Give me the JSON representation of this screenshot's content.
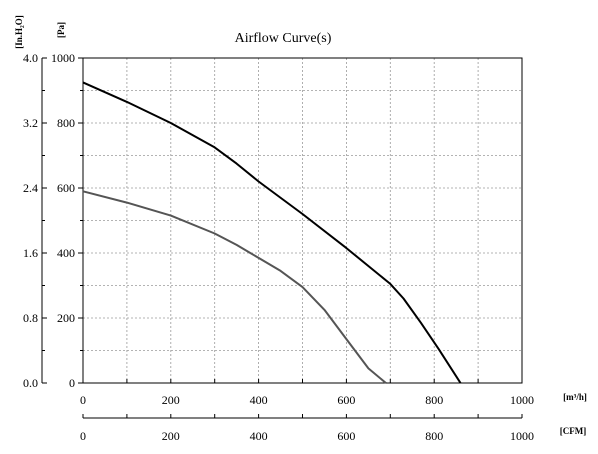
{
  "chart_data": {
    "type": "line",
    "title": "Airflow Curve(s)",
    "grid": true,
    "left_axis_outer": {
      "unit": "[In.H₂O]",
      "range": [
        0,
        4.0
      ],
      "ticks": [
        "0.0",
        "0.8",
        "1.6",
        "2.4",
        "3.2",
        "4.0"
      ]
    },
    "left_axis_inner": {
      "unit": "[Pa]",
      "range": [
        0,
        1000
      ],
      "ticks": [
        "0",
        "200",
        "400",
        "600",
        "800",
        "1000"
      ]
    },
    "x_axis_primary": {
      "unit": "[m³/h]",
      "range": [
        0,
        1000
      ],
      "ticks": [
        "0",
        "200",
        "400",
        "600",
        "800",
        "1000"
      ]
    },
    "x_axis_secondary": {
      "unit": "[CFM]",
      "ticks": [
        "0",
        "200",
        "400",
        "600",
        "800",
        "1000"
      ]
    },
    "series": [
      {
        "color": "#000000",
        "x": [
          0,
          100,
          200,
          300,
          350,
          400,
          500,
          600,
          700,
          730,
          770,
          810,
          860
        ],
        "y": [
          925,
          865,
          800,
          725,
          675,
          620,
          520,
          415,
          305,
          260,
          185,
          105,
          0
        ]
      },
      {
        "color": "#555555",
        "x": [
          0,
          100,
          200,
          300,
          350,
          400,
          450,
          500,
          550,
          600,
          650,
          690
        ],
        "y": [
          590,
          555,
          515,
          460,
          425,
          385,
          345,
          295,
          225,
          135,
          45,
          0
        ]
      }
    ]
  }
}
